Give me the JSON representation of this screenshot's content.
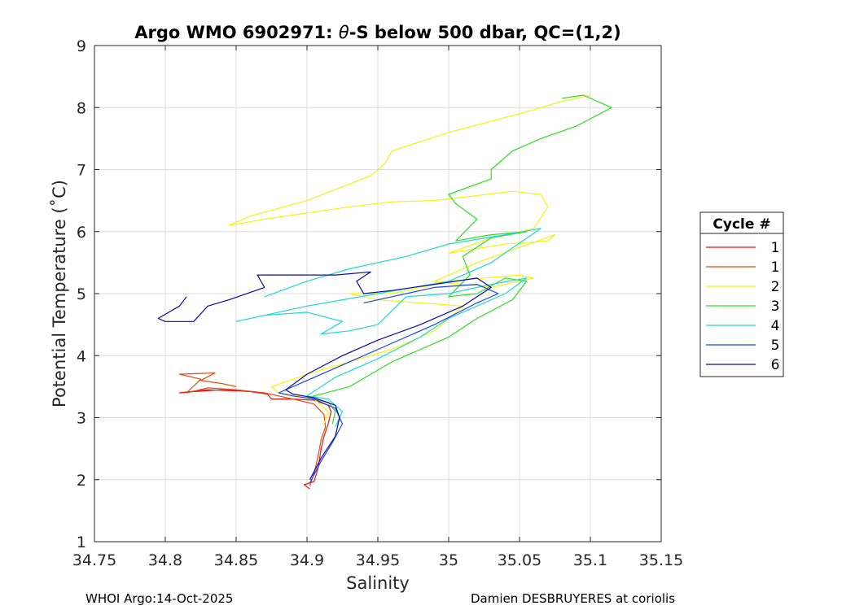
{
  "chart_data": {
    "type": "line",
    "title_prefix": "Argo WMO 6902971: ",
    "title_theta": "θ",
    "title_suffix": "-S below 500 dbar,  QC=(1,2)",
    "xlabel": "Salinity",
    "ylabel": "Potential Temperature (˚C)",
    "xlim": [
      34.75,
      35.15
    ],
    "ylim": [
      1,
      9
    ],
    "xticks": [
      "34.75",
      "34.8",
      "34.85",
      "34.9",
      "34.95",
      "35",
      "35.05",
      "35.1",
      "35.15"
    ],
    "yticks": [
      "1",
      "2",
      "3",
      "4",
      "5",
      "6",
      "7",
      "8",
      "9"
    ],
    "grid": true,
    "legend": {
      "title": "Cycle #",
      "placement": "outside-right"
    },
    "series": [
      {
        "name": "1",
        "color": "#e8140e",
        "points": [
          [
            34.902,
            1.85
          ],
          [
            34.898,
            1.92
          ],
          [
            34.905,
            1.97
          ],
          [
            34.908,
            2.2
          ],
          [
            34.91,
            2.5
          ],
          [
            34.912,
            2.7
          ],
          [
            34.915,
            2.9
          ],
          [
            34.917,
            3.1
          ],
          [
            34.915,
            3.2
          ],
          [
            34.905,
            3.28
          ],
          [
            34.89,
            3.3
          ],
          [
            34.875,
            3.3
          ],
          [
            34.872,
            3.38
          ],
          [
            34.86,
            3.42
          ],
          [
            34.84,
            3.45
          ],
          [
            34.82,
            3.42
          ],
          [
            34.81,
            3.4
          ],
          [
            34.83,
            3.45
          ],
          [
            34.85,
            3.43
          ]
        ]
      },
      {
        "name": "1",
        "color": "#e04a10",
        "points": [
          [
            34.902,
            1.9
          ],
          [
            34.905,
            2.1
          ],
          [
            34.908,
            2.4
          ],
          [
            34.91,
            2.65
          ],
          [
            34.913,
            2.85
          ],
          [
            34.912,
            3.05
          ],
          [
            34.905,
            3.22
          ],
          [
            34.89,
            3.3
          ],
          [
            34.88,
            3.35
          ],
          [
            34.87,
            3.4
          ],
          [
            34.85,
            3.45
          ],
          [
            34.83,
            3.48
          ],
          [
            34.815,
            3.4
          ],
          [
            34.825,
            3.62
          ],
          [
            34.81,
            3.7
          ],
          [
            34.835,
            3.72
          ],
          [
            34.825,
            3.6
          ],
          [
            34.84,
            3.55
          ],
          [
            34.85,
            3.5
          ]
        ]
      },
      {
        "name": "2",
        "color": "#f4f40e",
        "points": [
          [
            34.912,
            2.9
          ],
          [
            34.915,
            3.1
          ],
          [
            34.905,
            3.3
          ],
          [
            34.88,
            3.4
          ],
          [
            34.875,
            3.5
          ],
          [
            34.9,
            3.7
          ],
          [
            34.93,
            3.9
          ],
          [
            34.96,
            4.1
          ],
          [
            34.99,
            4.4
          ],
          [
            35.01,
            4.8
          ],
          [
            34.95,
            4.9
          ],
          [
            34.93,
            5.0
          ],
          [
            34.96,
            5.0
          ],
          [
            35.0,
            5.2
          ],
          [
            35.05,
            5.3
          ],
          [
            35.06,
            5.25
          ],
          [
            35.03,
            5.1
          ],
          [
            34.99,
            5.2
          ],
          [
            35.02,
            5.5
          ],
          [
            35.075,
            5.95
          ],
          [
            35.07,
            5.85
          ],
          [
            35.04,
            5.8
          ],
          [
            35.0,
            5.65
          ],
          [
            35.03,
            5.9
          ],
          [
            35.06,
            6.05
          ],
          [
            35.07,
            6.4
          ],
          [
            35.065,
            6.6
          ],
          [
            35.045,
            6.65
          ],
          [
            35.02,
            6.58
          ],
          [
            34.99,
            6.5
          ],
          [
            34.96,
            6.48
          ],
          [
            34.93,
            6.4
          ],
          [
            34.9,
            6.3
          ],
          [
            34.87,
            6.2
          ],
          [
            34.845,
            6.1
          ],
          [
            34.86,
            6.25
          ],
          [
            34.9,
            6.5
          ],
          [
            34.945,
            6.9
          ],
          [
            34.955,
            7.1
          ],
          [
            34.96,
            7.3
          ],
          [
            35.0,
            7.6
          ],
          [
            35.05,
            7.9
          ],
          [
            35.08,
            8.1
          ],
          [
            35.1,
            8.2
          ],
          [
            35.09,
            8.15
          ]
        ]
      },
      {
        "name": "3",
        "color": "#2de01e",
        "points": [
          [
            34.918,
            2.9
          ],
          [
            34.92,
            3.1
          ],
          [
            34.915,
            3.25
          ],
          [
            34.9,
            3.32
          ],
          [
            34.93,
            3.5
          ],
          [
            34.96,
            3.9
          ],
          [
            35.0,
            4.3
          ],
          [
            35.02,
            4.6
          ],
          [
            35.045,
            4.9
          ],
          [
            35.055,
            5.2
          ],
          [
            35.04,
            5.25
          ],
          [
            35.02,
            5.0
          ],
          [
            35.0,
            4.95
          ],
          [
            35.015,
            5.3
          ],
          [
            35.01,
            5.6
          ],
          [
            35.03,
            5.9
          ],
          [
            35.055,
            6.0
          ],
          [
            35.03,
            5.95
          ],
          [
            35.005,
            5.85
          ],
          [
            35.02,
            6.2
          ],
          [
            35.005,
            6.45
          ],
          [
            35.0,
            6.6
          ],
          [
            35.03,
            6.85
          ],
          [
            35.03,
            7.0
          ],
          [
            35.045,
            7.3
          ],
          [
            35.065,
            7.5
          ],
          [
            35.09,
            7.7
          ],
          [
            35.115,
            8.0
          ],
          [
            35.095,
            8.2
          ],
          [
            35.08,
            8.15
          ]
        ]
      },
      {
        "name": "4",
        "color": "#1ed8d8",
        "points": [
          [
            34.92,
            2.85
          ],
          [
            34.925,
            3.1
          ],
          [
            34.915,
            3.3
          ],
          [
            34.9,
            3.35
          ],
          [
            34.92,
            3.65
          ],
          [
            34.95,
            3.95
          ],
          [
            34.98,
            4.3
          ],
          [
            35.0,
            4.6
          ],
          [
            35.04,
            5.0
          ],
          [
            35.055,
            5.25
          ],
          [
            35.03,
            5.15
          ],
          [
            35.0,
            5.0
          ],
          [
            34.97,
            4.95
          ],
          [
            34.95,
            4.5
          ],
          [
            34.93,
            4.4
          ],
          [
            34.91,
            4.35
          ],
          [
            34.925,
            4.55
          ],
          [
            34.9,
            4.7
          ],
          [
            34.87,
            4.65
          ],
          [
            34.85,
            4.55
          ],
          [
            34.9,
            4.8
          ],
          [
            34.95,
            5.0
          ],
          [
            35.0,
            5.2
          ],
          [
            35.03,
            5.5
          ],
          [
            35.065,
            6.05
          ],
          [
            35.04,
            5.95
          ],
          [
            35.0,
            5.8
          ],
          [
            34.97,
            5.6
          ],
          [
            34.93,
            5.4
          ],
          [
            34.9,
            5.2
          ],
          [
            34.87,
            4.95
          ]
        ]
      },
      {
        "name": "5",
        "color": "#1646e8",
        "points": [
          [
            34.902,
            1.95
          ],
          [
            34.91,
            2.3
          ],
          [
            34.918,
            2.6
          ],
          [
            34.925,
            2.9
          ],
          [
            34.92,
            3.15
          ],
          [
            34.905,
            3.3
          ],
          [
            34.89,
            3.35
          ],
          [
            34.88,
            3.4
          ],
          [
            34.9,
            3.6
          ],
          [
            34.93,
            3.9
          ],
          [
            34.96,
            4.2
          ],
          [
            34.99,
            4.5
          ],
          [
            35.02,
            4.85
          ],
          [
            35.035,
            5.0
          ],
          [
            35.02,
            5.15
          ],
          [
            34.99,
            5.1
          ],
          [
            34.96,
            4.95
          ],
          [
            34.94,
            4.85
          ]
        ]
      },
      {
        "name": "6",
        "color": "#0a0aa0",
        "points": [
          [
            34.902,
            2.0
          ],
          [
            34.91,
            2.35
          ],
          [
            34.92,
            2.7
          ],
          [
            34.923,
            3.0
          ],
          [
            34.92,
            3.2
          ],
          [
            34.905,
            3.32
          ],
          [
            34.89,
            3.38
          ],
          [
            34.885,
            3.45
          ],
          [
            34.9,
            3.7
          ],
          [
            34.925,
            4.0
          ],
          [
            34.95,
            4.25
          ],
          [
            34.98,
            4.5
          ],
          [
            35.01,
            4.8
          ],
          [
            35.03,
            5.1
          ],
          [
            35.02,
            5.25
          ],
          [
            34.99,
            5.15
          ],
          [
            34.96,
            5.05
          ],
          [
            34.94,
            5.0
          ],
          [
            34.935,
            5.2
          ],
          [
            34.945,
            5.35
          ],
          [
            34.92,
            5.3
          ],
          [
            34.885,
            5.3
          ],
          [
            34.865,
            5.3
          ],
          [
            34.87,
            5.1
          ],
          [
            34.845,
            4.9
          ],
          [
            34.83,
            4.8
          ],
          [
            34.82,
            4.55
          ],
          [
            34.8,
            4.55
          ],
          [
            34.795,
            4.6
          ],
          [
            34.81,
            4.8
          ],
          [
            34.815,
            4.95
          ]
        ]
      }
    ]
  },
  "footer": {
    "left": "WHOI Argo:14-Oct-2025",
    "right": "Damien DESBRUYERES at coriolis"
  }
}
